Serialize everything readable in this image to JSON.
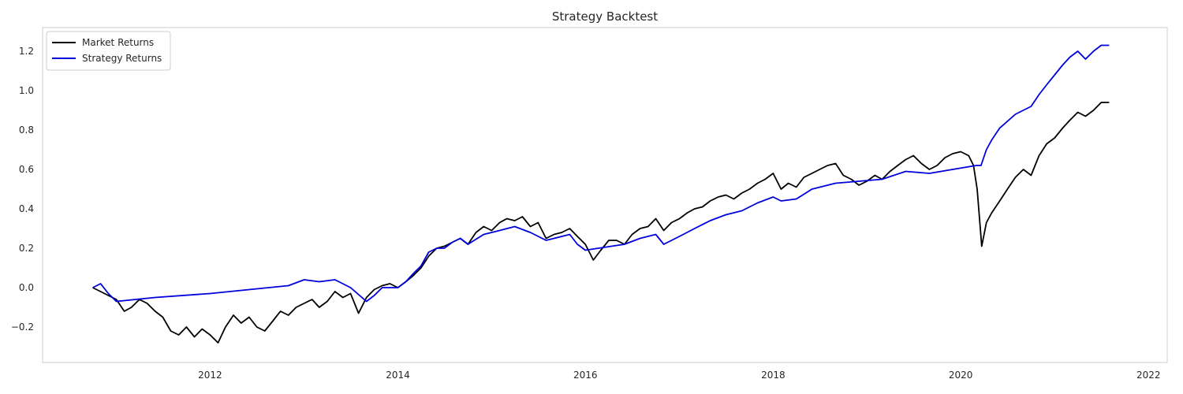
{
  "chart_data": {
    "type": "line",
    "title": "Strategy Backtest",
    "xlabel": "",
    "ylabel": "",
    "x_type": "date",
    "xlim": [
      "2010-03-20",
      "2022-03-15"
    ],
    "ylim": [
      -0.38,
      1.32
    ],
    "x_ticks": [
      "2012-01-01",
      "2014-01-01",
      "2016-01-01",
      "2018-01-01",
      "2020-01-01",
      "2022-01-01"
    ],
    "x_tick_labels": [
      "2012",
      "2014",
      "2016",
      "2018",
      "2020",
      "2022"
    ],
    "y_ticks": [
      -0.2,
      0.0,
      0.2,
      0.4,
      0.6,
      0.8,
      1.0,
      1.2
    ],
    "y_tick_labels": [
      "−0.2",
      "0.0",
      "0.2",
      "0.4",
      "0.6",
      "0.8",
      "1.0",
      "1.2"
    ],
    "grid": false,
    "legend_position": "top-left",
    "series": [
      {
        "name": "Market Returns",
        "color": "#000000",
        "points": [
          [
            "2010-10-01",
            0.0
          ],
          [
            "2010-11-01",
            -0.02
          ],
          [
            "2010-12-01",
            -0.04
          ],
          [
            "2011-01-01",
            -0.06
          ],
          [
            "2011-02-01",
            -0.12
          ],
          [
            "2011-03-01",
            -0.1
          ],
          [
            "2011-04-01",
            -0.06
          ],
          [
            "2011-05-01",
            -0.08
          ],
          [
            "2011-06-01",
            -0.12
          ],
          [
            "2011-07-01",
            -0.15
          ],
          [
            "2011-08-01",
            -0.22
          ],
          [
            "2011-09-01",
            -0.24
          ],
          [
            "2011-10-01",
            -0.2
          ],
          [
            "2011-11-01",
            -0.25
          ],
          [
            "2011-12-01",
            -0.21
          ],
          [
            "2012-01-01",
            -0.24
          ],
          [
            "2012-02-01",
            -0.28
          ],
          [
            "2012-03-01",
            -0.2
          ],
          [
            "2012-04-01",
            -0.14
          ],
          [
            "2012-05-01",
            -0.18
          ],
          [
            "2012-06-01",
            -0.15
          ],
          [
            "2012-07-01",
            -0.2
          ],
          [
            "2012-08-01",
            -0.22
          ],
          [
            "2012-09-01",
            -0.17
          ],
          [
            "2012-10-01",
            -0.12
          ],
          [
            "2012-11-01",
            -0.14
          ],
          [
            "2012-12-01",
            -0.1
          ],
          [
            "2013-01-01",
            -0.08
          ],
          [
            "2013-02-01",
            -0.06
          ],
          [
            "2013-03-01",
            -0.1
          ],
          [
            "2013-04-01",
            -0.07
          ],
          [
            "2013-05-01",
            -0.02
          ],
          [
            "2013-06-01",
            -0.05
          ],
          [
            "2013-07-01",
            -0.03
          ],
          [
            "2013-08-01",
            -0.13
          ],
          [
            "2013-09-01",
            -0.05
          ],
          [
            "2013-10-01",
            -0.01
          ],
          [
            "2013-11-01",
            0.01
          ],
          [
            "2013-12-01",
            0.02
          ],
          [
            "2014-01-01",
            0.0
          ],
          [
            "2014-02-01",
            0.03
          ],
          [
            "2014-03-01",
            0.06
          ],
          [
            "2014-04-01",
            0.1
          ],
          [
            "2014-05-01",
            0.16
          ],
          [
            "2014-06-01",
            0.2
          ],
          [
            "2014-07-01",
            0.21
          ],
          [
            "2014-08-01",
            0.23
          ],
          [
            "2014-09-01",
            0.25
          ],
          [
            "2014-10-01",
            0.22
          ],
          [
            "2014-11-01",
            0.28
          ],
          [
            "2014-12-01",
            0.31
          ],
          [
            "2015-01-01",
            0.29
          ],
          [
            "2015-02-01",
            0.33
          ],
          [
            "2015-03-01",
            0.35
          ],
          [
            "2015-04-01",
            0.34
          ],
          [
            "2015-05-01",
            0.36
          ],
          [
            "2015-06-01",
            0.31
          ],
          [
            "2015-07-01",
            0.33
          ],
          [
            "2015-08-01",
            0.25
          ],
          [
            "2015-09-01",
            0.27
          ],
          [
            "2015-10-01",
            0.28
          ],
          [
            "2015-11-01",
            0.3
          ],
          [
            "2015-12-01",
            0.26
          ],
          [
            "2016-01-01",
            0.22
          ],
          [
            "2016-02-01",
            0.14
          ],
          [
            "2016-03-01",
            0.19
          ],
          [
            "2016-04-01",
            0.24
          ],
          [
            "2016-05-01",
            0.24
          ],
          [
            "2016-06-01",
            0.22
          ],
          [
            "2016-07-01",
            0.27
          ],
          [
            "2016-08-01",
            0.3
          ],
          [
            "2016-09-01",
            0.31
          ],
          [
            "2016-10-01",
            0.35
          ],
          [
            "2016-11-01",
            0.29
          ],
          [
            "2016-12-01",
            0.33
          ],
          [
            "2017-01-01",
            0.35
          ],
          [
            "2017-02-01",
            0.38
          ],
          [
            "2017-03-01",
            0.4
          ],
          [
            "2017-04-01",
            0.41
          ],
          [
            "2017-05-01",
            0.44
          ],
          [
            "2017-06-01",
            0.46
          ],
          [
            "2017-07-01",
            0.47
          ],
          [
            "2017-08-01",
            0.45
          ],
          [
            "2017-09-01",
            0.48
          ],
          [
            "2017-10-01",
            0.5
          ],
          [
            "2017-11-01",
            0.53
          ],
          [
            "2017-12-01",
            0.55
          ],
          [
            "2018-01-01",
            0.58
          ],
          [
            "2018-02-01",
            0.5
          ],
          [
            "2018-03-01",
            0.53
          ],
          [
            "2018-04-01",
            0.51
          ],
          [
            "2018-05-01",
            0.56
          ],
          [
            "2018-06-01",
            0.58
          ],
          [
            "2018-07-01",
            0.6
          ],
          [
            "2018-08-01",
            0.62
          ],
          [
            "2018-09-01",
            0.63
          ],
          [
            "2018-10-01",
            0.57
          ],
          [
            "2018-11-01",
            0.55
          ],
          [
            "2018-12-01",
            0.52
          ],
          [
            "2019-01-01",
            0.54
          ],
          [
            "2019-02-01",
            0.57
          ],
          [
            "2019-03-01",
            0.55
          ],
          [
            "2019-04-01",
            0.59
          ],
          [
            "2019-05-01",
            0.62
          ],
          [
            "2019-06-01",
            0.65
          ],
          [
            "2019-07-01",
            0.67
          ],
          [
            "2019-08-01",
            0.63
          ],
          [
            "2019-09-01",
            0.6
          ],
          [
            "2019-10-01",
            0.62
          ],
          [
            "2019-11-01",
            0.66
          ],
          [
            "2019-12-01",
            0.68
          ],
          [
            "2020-01-01",
            0.69
          ],
          [
            "2020-02-01",
            0.67
          ],
          [
            "2020-02-20",
            0.62
          ],
          [
            "2020-03-05",
            0.5
          ],
          [
            "2020-03-23",
            0.21
          ],
          [
            "2020-04-10",
            0.33
          ],
          [
            "2020-05-01",
            0.38
          ],
          [
            "2020-06-01",
            0.44
          ],
          [
            "2020-07-01",
            0.5
          ],
          [
            "2020-08-01",
            0.56
          ],
          [
            "2020-09-01",
            0.6
          ],
          [
            "2020-10-01",
            0.57
          ],
          [
            "2020-11-01",
            0.67
          ],
          [
            "2020-12-01",
            0.73
          ],
          [
            "2021-01-01",
            0.76
          ],
          [
            "2021-02-01",
            0.81
          ],
          [
            "2021-03-01",
            0.85
          ],
          [
            "2021-04-01",
            0.89
          ],
          [
            "2021-05-01",
            0.87
          ],
          [
            "2021-06-01",
            0.9
          ],
          [
            "2021-07-01",
            0.94
          ],
          [
            "2021-08-01",
            0.94
          ]
        ]
      },
      {
        "name": "Strategy Returns",
        "color": "#0000dd",
        "points": [
          [
            "2010-10-01",
            0.0
          ],
          [
            "2010-11-01",
            0.02
          ],
          [
            "2010-12-01",
            -0.03
          ],
          [
            "2011-01-01",
            -0.07
          ],
          [
            "2011-06-01",
            -0.05
          ],
          [
            "2012-01-01",
            -0.03
          ],
          [
            "2012-06-01",
            -0.01
          ],
          [
            "2012-11-01",
            0.01
          ],
          [
            "2013-01-01",
            0.04
          ],
          [
            "2013-03-01",
            0.03
          ],
          [
            "2013-05-01",
            0.04
          ],
          [
            "2013-07-01",
            0.0
          ],
          [
            "2013-09-01",
            -0.07
          ],
          [
            "2013-10-01",
            -0.04
          ],
          [
            "2013-11-01",
            0.0
          ],
          [
            "2014-01-01",
            0.0
          ],
          [
            "2014-02-01",
            0.03
          ],
          [
            "2014-03-01",
            0.07
          ],
          [
            "2014-04-01",
            0.11
          ],
          [
            "2014-05-01",
            0.18
          ],
          [
            "2014-06-01",
            0.2
          ],
          [
            "2014-07-01",
            0.2
          ],
          [
            "2014-08-01",
            0.23
          ],
          [
            "2014-09-01",
            0.25
          ],
          [
            "2014-10-01",
            0.22
          ],
          [
            "2014-12-01",
            0.27
          ],
          [
            "2015-02-01",
            0.29
          ],
          [
            "2015-04-01",
            0.31
          ],
          [
            "2015-06-01",
            0.28
          ],
          [
            "2015-08-01",
            0.24
          ],
          [
            "2015-09-01",
            0.25
          ],
          [
            "2015-11-01",
            0.27
          ],
          [
            "2015-12-01",
            0.22
          ],
          [
            "2016-01-01",
            0.19
          ],
          [
            "2016-06-01",
            0.22
          ],
          [
            "2016-08-01",
            0.25
          ],
          [
            "2016-10-01",
            0.27
          ],
          [
            "2016-11-01",
            0.22
          ],
          [
            "2017-01-01",
            0.26
          ],
          [
            "2017-03-01",
            0.3
          ],
          [
            "2017-05-01",
            0.34
          ],
          [
            "2017-07-01",
            0.37
          ],
          [
            "2017-09-01",
            0.39
          ],
          [
            "2017-11-01",
            0.43
          ],
          [
            "2018-01-01",
            0.46
          ],
          [
            "2018-02-01",
            0.44
          ],
          [
            "2018-04-01",
            0.45
          ],
          [
            "2018-06-01",
            0.5
          ],
          [
            "2018-09-01",
            0.53
          ],
          [
            "2018-12-01",
            0.54
          ],
          [
            "2019-03-01",
            0.55
          ],
          [
            "2019-06-01",
            0.59
          ],
          [
            "2019-09-01",
            0.58
          ],
          [
            "2019-12-01",
            0.6
          ],
          [
            "2020-03-01",
            0.62
          ],
          [
            "2020-03-20",
            0.62
          ],
          [
            "2020-04-10",
            0.7
          ],
          [
            "2020-05-01",
            0.75
          ],
          [
            "2020-06-01",
            0.81
          ],
          [
            "2020-08-01",
            0.88
          ],
          [
            "2020-10-01",
            0.92
          ],
          [
            "2020-11-01",
            0.98
          ],
          [
            "2020-12-01",
            1.03
          ],
          [
            "2021-01-01",
            1.08
          ],
          [
            "2021-02-01",
            1.13
          ],
          [
            "2021-03-01",
            1.17
          ],
          [
            "2021-04-01",
            1.2
          ],
          [
            "2021-05-01",
            1.16
          ],
          [
            "2021-06-01",
            1.2
          ],
          [
            "2021-07-01",
            1.23
          ],
          [
            "2021-08-01",
            1.23
          ]
        ]
      }
    ]
  }
}
